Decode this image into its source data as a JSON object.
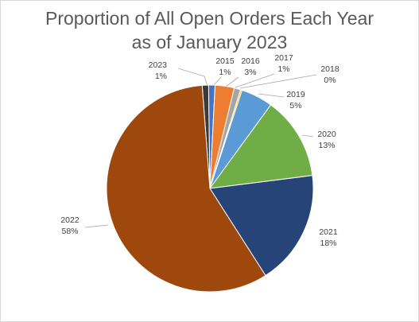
{
  "chart_data": {
    "type": "pie",
    "title_lines": [
      "Proportion of All Open Orders Each Year",
      "as of January 2023"
    ],
    "start_category": "2023",
    "direction": "clockwise",
    "slices": [
      {
        "category": "2023",
        "value": 1,
        "label": "1%",
        "color": "#3a3a3a"
      },
      {
        "category": "2015",
        "value": 1,
        "label": "1%",
        "color": "#4472c4"
      },
      {
        "category": "2016",
        "value": 3,
        "label": "3%",
        "color": "#ed7d31"
      },
      {
        "category": "2017",
        "value": 1,
        "label": "1%",
        "color": "#a5a5a5"
      },
      {
        "category": "2018",
        "value": 0,
        "label": "0%",
        "color": "#ffc000"
      },
      {
        "category": "2019",
        "value": 5,
        "label": "5%",
        "color": "#5b9bd5"
      },
      {
        "category": "2020",
        "value": 13,
        "label": "13%",
        "color": "#70ad47"
      },
      {
        "category": "2021",
        "value": 18,
        "label": "18%",
        "color": "#264478"
      },
      {
        "category": "2022",
        "value": 58,
        "label": "58%",
        "color": "#9e480e"
      }
    ]
  }
}
